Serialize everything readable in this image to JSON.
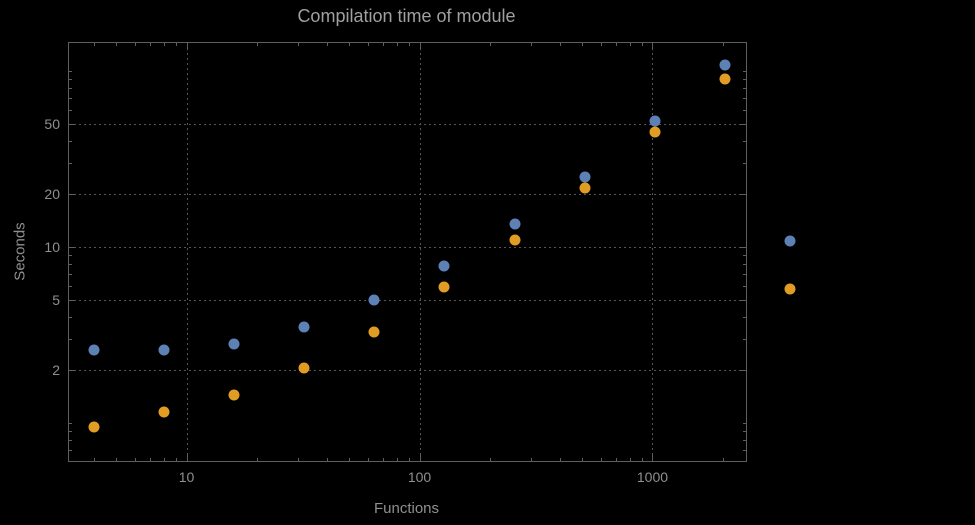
{
  "title": "Compilation time of module",
  "xlabel": "Functions",
  "ylabel": "Seconds",
  "colors": {
    "background": "#000000",
    "text": "#8f8f8f",
    "frame": "#5f5f5f",
    "grid": "#565656",
    "series_blue": "#5e81b5",
    "series_orange": "#e19c24"
  },
  "chart_data": {
    "type": "scatter",
    "title": "Compilation time of module",
    "xlabel": "Functions",
    "ylabel": "Seconds",
    "x_scale": "log",
    "y_scale": "log",
    "grid": true,
    "xlim": [
      3.13,
      2520
    ],
    "ylim": [
      0.61,
      144
    ],
    "x_ticks": [
      {
        "value": 10,
        "label": "10"
      },
      {
        "value": 100,
        "label": "100"
      },
      {
        "value": 1000,
        "label": "1000"
      }
    ],
    "y_ticks": [
      {
        "value": 2,
        "label": "2"
      },
      {
        "value": 5,
        "label": "5"
      },
      {
        "value": 10,
        "label": "10"
      },
      {
        "value": 20,
        "label": "20"
      },
      {
        "value": 50,
        "label": "50"
      }
    ],
    "x": [
      4,
      8,
      16,
      32,
      64,
      128,
      256,
      512,
      1024,
      2048
    ],
    "series": [
      {
        "name": "series-blue",
        "color": "#5e81b5",
        "values": [
          2.6,
          2.6,
          2.8,
          3.5,
          5.0,
          7.8,
          13.5,
          25,
          52,
          108
        ]
      },
      {
        "name": "series-orange",
        "color": "#e19c24",
        "values": [
          0.95,
          1.15,
          1.45,
          2.05,
          3.3,
          5.9,
          11,
          21.5,
          45,
          90
        ]
      }
    ],
    "legend_markers": [
      {
        "name": "legend-marker-blue",
        "color": "#5e81b5"
      },
      {
        "name": "legend-marker-orange",
        "color": "#e19c24"
      }
    ]
  }
}
